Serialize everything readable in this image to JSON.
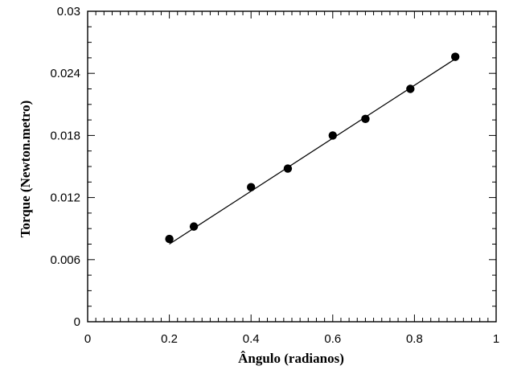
{
  "chart_data": {
    "type": "scatter",
    "xlabel": "Ângulo (radianos)",
    "ylabel": "Torque (Newton.metro)",
    "xlim": [
      0,
      1
    ],
    "ylim": [
      0,
      0.03
    ],
    "x_ticks": [
      0,
      0.2,
      0.4,
      0.6,
      0.8,
      1
    ],
    "x_tick_labels": [
      "0",
      "0.2",
      "0.4",
      "0.6",
      "0.8",
      "1"
    ],
    "y_ticks": [
      0,
      0.006,
      0.012,
      0.018,
      0.024,
      0.03
    ],
    "y_tick_labels": [
      "0",
      "0.006",
      "0.012",
      "0.018",
      "0.024",
      "0.03"
    ],
    "grid": false,
    "series": [
      {
        "x": [
          0.2,
          0.26,
          0.4,
          0.49,
          0.6,
          0.68,
          0.79,
          0.9
        ],
        "y": [
          0.008,
          0.0092,
          0.013,
          0.0148,
          0.018,
          0.0196,
          0.0225,
          0.0256
        ],
        "marker": "filled-circle",
        "color": "#000000"
      }
    ],
    "fit_line": {
      "x": [
        0.2,
        0.9
      ],
      "y": [
        0.0075,
        0.0254
      ],
      "color": "#000000"
    }
  }
}
